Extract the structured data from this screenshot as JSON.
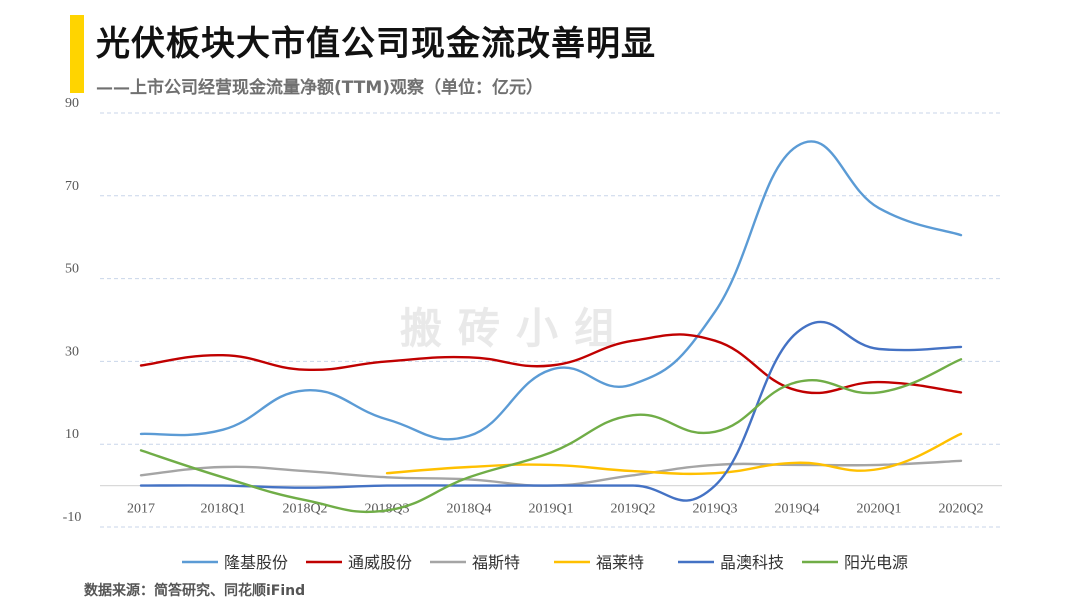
{
  "title": "光伏板块大市值公司现金流改善明显",
  "subtitle": "——上市公司经营现金流量净额(TTM)观察（单位：亿元）",
  "source": "数据来源：简答研究、同花顺iFind",
  "watermark": "搬砖小组",
  "colors": {
    "accent": "#ffd400",
    "grid": "#c9d6ea"
  },
  "chart_data": {
    "type": "line",
    "title": "光伏板块大市值公司现金流改善明显",
    "subtitle": "——上市公司经营现金流量净额(TTM)观察（单位：亿元）",
    "categories": [
      "2017",
      "2018Q1",
      "2018Q2",
      "2018Q3",
      "2018Q4",
      "2019Q1",
      "2019Q2",
      "2019Q3",
      "2019Q4",
      "2020Q1",
      "2020Q2"
    ],
    "ylim": [
      -10,
      90
    ],
    "yticks": [
      -10,
      10,
      30,
      50,
      70,
      90
    ],
    "grid": true,
    "legend_position": "bottom",
    "series": [
      {
        "name": "隆基股份",
        "color": "#5b9bd5",
        "values": [
          12.5,
          13.5,
          23,
          16,
          12,
          28,
          24.5,
          42,
          82,
          67,
          60.5
        ]
      },
      {
        "name": "通威股份",
        "color": "#c00000",
        "values": [
          29,
          31.5,
          28,
          30,
          31,
          29,
          35,
          35,
          23,
          25,
          22.5
        ]
      },
      {
        "name": "福斯特",
        "color": "#a5a5a5",
        "values": [
          2.5,
          4.5,
          3.5,
          2,
          1.5,
          0,
          2.5,
          5,
          5,
          5,
          6
        ]
      },
      {
        "name": "福莱特",
        "color": "#ffc000",
        "values": [
          null,
          null,
          null,
          3,
          4.5,
          5,
          3.5,
          3,
          5.5,
          4,
          12.5
        ]
      },
      {
        "name": "晶澳科技",
        "color": "#4472c4",
        "values": [
          0,
          0,
          -0.5,
          0,
          0,
          0,
          0,
          0,
          37,
          33,
          33.5
        ]
      },
      {
        "name": "阳光电源",
        "color": "#70ad47",
        "values": [
          8.5,
          2,
          -3.5,
          -6,
          2,
          8,
          17,
          13,
          25,
          22.5,
          30.5
        ]
      }
    ]
  }
}
